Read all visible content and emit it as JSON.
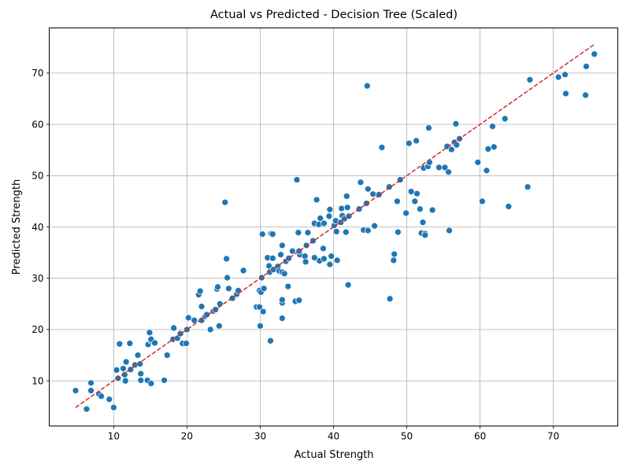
{
  "chart_data": {
    "type": "scatter",
    "title": "Actual vs Predicted - Decision Tree (Scaled)",
    "xlabel": "Actual Strength",
    "ylabel": "Predicted Strength",
    "xlim": [
      1.2,
      78.8
    ],
    "ylim": [
      1.2,
      78.8
    ],
    "xticks": [
      10,
      20,
      30,
      40,
      50,
      60,
      70
    ],
    "yticks": [
      10,
      20,
      30,
      40,
      50,
      60,
      70
    ],
    "grid": true,
    "point_color": "#1f77b4",
    "point_edge_color": "#ffffff",
    "reference_line": {
      "from": [
        4.8,
        4.8
      ],
      "to": [
        75.6,
        75.6
      ],
      "color": "#d62728",
      "style": "dashed"
    },
    "points": [
      [
        4.8,
        8.1
      ],
      [
        6.3,
        4.5
      ],
      [
        6.9,
        8.1
      ],
      [
        6.9,
        9.6
      ],
      [
        8.0,
        7.4
      ],
      [
        8.3,
        7.0
      ],
      [
        9.4,
        6.4
      ],
      [
        10.0,
        4.8
      ],
      [
        10.4,
        12.1
      ],
      [
        10.6,
        10.5
      ],
      [
        10.8,
        17.2
      ],
      [
        11.3,
        12.4
      ],
      [
        11.5,
        11.2
      ],
      [
        11.6,
        10.0
      ],
      [
        11.7,
        13.7
      ],
      [
        12.3,
        12.2
      ],
      [
        12.2,
        17.3
      ],
      [
        12.9,
        13.1
      ],
      [
        13.3,
        15.0
      ],
      [
        13.6,
        13.3
      ],
      [
        13.7,
        10.1
      ],
      [
        13.7,
        11.4
      ],
      [
        14.6,
        10.1
      ],
      [
        14.7,
        17.1
      ],
      [
        14.9,
        19.4
      ],
      [
        15.1,
        9.5
      ],
      [
        15.1,
        17.8
      ],
      [
        15.1,
        18.1
      ],
      [
        15.6,
        17.4
      ],
      [
        16.9,
        10.1
      ],
      [
        17.3,
        15.0
      ],
      [
        18.1,
        18.1
      ],
      [
        18.2,
        20.3
      ],
      [
        18.7,
        18.3
      ],
      [
        19.1,
        19.2
      ],
      [
        19.4,
        17.3
      ],
      [
        19.9,
        17.3
      ],
      [
        20.0,
        20.0
      ],
      [
        20.2,
        22.3
      ],
      [
        21.0,
        21.8
      ],
      [
        21.6,
        26.8
      ],
      [
        21.8,
        27.5
      ],
      [
        22.0,
        21.8
      ],
      [
        22.0,
        24.5
      ],
      [
        22.5,
        22.6
      ],
      [
        22.7,
        22.9
      ],
      [
        23.2,
        20.0
      ],
      [
        23.6,
        23.6
      ],
      [
        23.9,
        23.9
      ],
      [
        24.1,
        27.9
      ],
      [
        24.2,
        28.3
      ],
      [
        24.4,
        20.7
      ],
      [
        24.5,
        25.0
      ],
      [
        25.2,
        44.8
      ],
      [
        25.4,
        33.8
      ],
      [
        25.5,
        30.1
      ],
      [
        25.7,
        28.0
      ],
      [
        26.2,
        26.1
      ],
      [
        26.8,
        26.9
      ],
      [
        27.0,
        27.6
      ],
      [
        27.7,
        31.5
      ],
      [
        29.5,
        24.4
      ],
      [
        29.9,
        24.4
      ],
      [
        29.9,
        27.6
      ],
      [
        30.0,
        20.7
      ],
      [
        30.1,
        27.3
      ],
      [
        30.2,
        30.1
      ],
      [
        30.3,
        38.6
      ],
      [
        30.4,
        23.5
      ],
      [
        30.5,
        28.0
      ],
      [
        31.0,
        34.0
      ],
      [
        31.2,
        32.4
      ],
      [
        31.3,
        31.2
      ],
      [
        31.4,
        17.8
      ],
      [
        31.5,
        38.7
      ],
      [
        31.7,
        33.9
      ],
      [
        31.7,
        38.6
      ],
      [
        31.8,
        31.7
      ],
      [
        32.4,
        32.3
      ],
      [
        32.6,
        31.4
      ],
      [
        32.8,
        34.6
      ],
      [
        33.0,
        36.4
      ],
      [
        33.0,
        22.2
      ],
      [
        33.0,
        25.2
      ],
      [
        33.0,
        25.8
      ],
      [
        33.0,
        31.2
      ],
      [
        33.3,
        30.9
      ],
      [
        33.5,
        33.3
      ],
      [
        33.8,
        28.4
      ],
      [
        33.9,
        33.9
      ],
      [
        34.4,
        35.3
      ],
      [
        34.8,
        25.5
      ],
      [
        35.0,
        49.2
      ],
      [
        35.2,
        38.9
      ],
      [
        35.3,
        25.7
      ],
      [
        35.4,
        34.6
      ],
      [
        35.3,
        35.3
      ],
      [
        36.1,
        34.3
      ],
      [
        36.2,
        33.2
      ],
      [
        36.3,
        36.4
      ],
      [
        36.5,
        38.9
      ],
      [
        37.2,
        37.3
      ],
      [
        37.4,
        34.0
      ],
      [
        37.4,
        40.7
      ],
      [
        37.7,
        45.3
      ],
      [
        38.0,
        40.5
      ],
      [
        38.1,
        33.4
      ],
      [
        38.2,
        41.7
      ],
      [
        38.6,
        35.8
      ],
      [
        38.7,
        40.7
      ],
      [
        38.7,
        33.8
      ],
      [
        39.4,
        42.1
      ],
      [
        39.5,
        43.4
      ],
      [
        39.5,
        32.7
      ],
      [
        39.7,
        34.3
      ],
      [
        40.1,
        40.3
      ],
      [
        40.3,
        41.2
      ],
      [
        40.4,
        39.1
      ],
      [
        40.5,
        33.5
      ],
      [
        41.0,
        40.9
      ],
      [
        41.1,
        43.6
      ],
      [
        41.2,
        42.2
      ],
      [
        41.5,
        41.6
      ],
      [
        41.7,
        39.0
      ],
      [
        41.8,
        46.0
      ],
      [
        41.9,
        43.8
      ],
      [
        42.0,
        28.7
      ],
      [
        42.1,
        42.1
      ],
      [
        43.5,
        43.5
      ],
      [
        43.7,
        48.7
      ],
      [
        44.1,
        39.4
      ],
      [
        44.5,
        44.6
      ],
      [
        44.6,
        67.5
      ],
      [
        44.7,
        47.4
      ],
      [
        44.7,
        39.3
      ],
      [
        45.4,
        46.4
      ],
      [
        45.6,
        40.2
      ],
      [
        46.2,
        46.3
      ],
      [
        46.6,
        55.5
      ],
      [
        47.6,
        47.8
      ],
      [
        47.7,
        26.0
      ],
      [
        48.2,
        33.5
      ],
      [
        48.3,
        34.7
      ],
      [
        48.7,
        45.0
      ],
      [
        48.8,
        39.0
      ],
      [
        49.1,
        49.2
      ],
      [
        49.9,
        42.7
      ],
      [
        50.3,
        56.3
      ],
      [
        50.6,
        46.9
      ],
      [
        51.1,
        45.0
      ],
      [
        51.3,
        56.8
      ],
      [
        51.4,
        46.5
      ],
      [
        51.8,
        43.5
      ],
      [
        52.0,
        38.8
      ],
      [
        52.2,
        40.9
      ],
      [
        52.3,
        51.5
      ],
      [
        52.5,
        38.7
      ],
      [
        52.5,
        38.4
      ],
      [
        52.9,
        51.8
      ],
      [
        53.0,
        59.3
      ],
      [
        53.1,
        52.6
      ],
      [
        53.5,
        43.3
      ],
      [
        54.4,
        51.6
      ],
      [
        55.2,
        51.6
      ],
      [
        55.5,
        55.7
      ],
      [
        55.7,
        50.7
      ],
      [
        55.8,
        39.3
      ],
      [
        56.1,
        55.1
      ],
      [
        56.5,
        56.5
      ],
      [
        56.7,
        60.1
      ],
      [
        56.8,
        56.0
      ],
      [
        57.2,
        57.2
      ],
      [
        59.7,
        52.6
      ],
      [
        60.3,
        45.0
      ],
      [
        60.9,
        51.0
      ],
      [
        61.1,
        55.2
      ],
      [
        61.7,
        59.6
      ],
      [
        61.9,
        55.6
      ],
      [
        63.4,
        61.1
      ],
      [
        63.9,
        44.0
      ],
      [
        66.5,
        47.8
      ],
      [
        66.8,
        68.7
      ],
      [
        70.7,
        69.2
      ],
      [
        71.6,
        69.7
      ],
      [
        71.7,
        66.0
      ],
      [
        74.5,
        71.3
      ],
      [
        74.4,
        65.7
      ],
      [
        75.6,
        73.7
      ]
    ]
  }
}
